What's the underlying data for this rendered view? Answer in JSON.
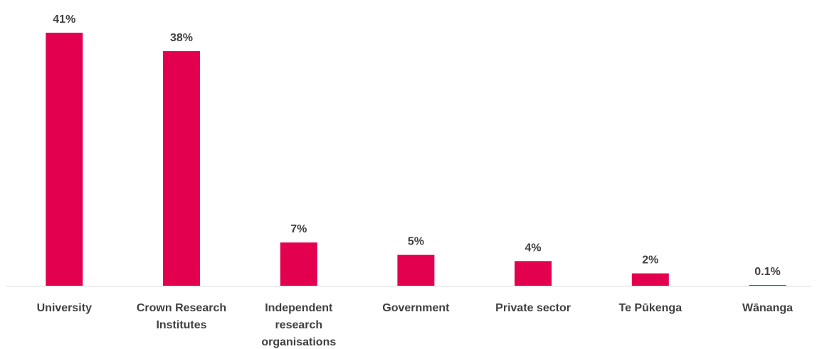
{
  "chart_data": {
    "type": "bar",
    "title": "",
    "xlabel": "",
    "ylabel": "",
    "categories": [
      "University",
      "Crown Research Institutes",
      "Independent research organisations",
      "Government",
      "Private sector",
      "Te Pūkenga",
      "Wānanga"
    ],
    "category_label_lines": [
      [
        "University"
      ],
      [
        "Crown Research",
        "Institutes"
      ],
      [
        "Independent",
        "research",
        "organisations"
      ],
      [
        "Government"
      ],
      [
        "Private sector"
      ],
      [
        "Te Pūkenga"
      ],
      [
        "Wānanga"
      ]
    ],
    "values": [
      41,
      38,
      7,
      5,
      4,
      2,
      0.1
    ],
    "data_labels": [
      "41%",
      "38%",
      "7%",
      "5%",
      "4%",
      "2%",
      "0.1%"
    ],
    "ylim": [
      0,
      41
    ],
    "grid": false,
    "legend": "none",
    "bar_color": "#e3004f",
    "axis_color": "#d9d9d9",
    "text_color": "#404040"
  }
}
